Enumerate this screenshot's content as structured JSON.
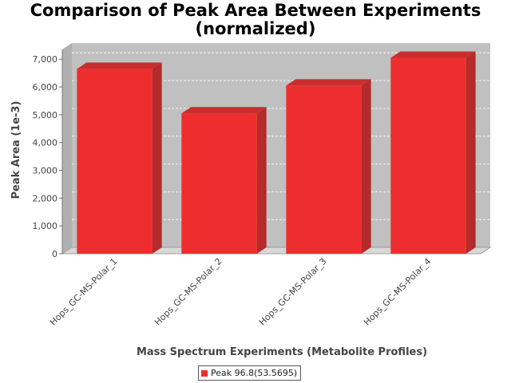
{
  "chart_data": {
    "type": "bar",
    "title_line1": "Comparison of Peak Area Between Experiments",
    "title_line2": "(normalized)",
    "xlabel": "Mass Spectrum Experiments (Metabolite Profiles)",
    "ylabel": "Peak Area (1e-3)",
    "categories": [
      "Hops_GC-MS-Polar_1",
      "Hops_GC-MS-Polar_2",
      "Hops_GC-MS-Polar_3",
      "Hops_GC-MS-Polar_4"
    ],
    "series": [
      {
        "name": "Peak 96.8(53.5695)",
        "values": [
          6650,
          5050,
          6050,
          7050
        ]
      }
    ],
    "ylim": [
      0,
      7350
    ],
    "yticks": [
      0,
      1000,
      2000,
      3000,
      4000,
      5000,
      6000,
      7000
    ],
    "ytick_labels": [
      "0",
      "1,000",
      "2,000",
      "3,000",
      "4,000",
      "5,000",
      "6,000",
      "7,000"
    ],
    "grid": true,
    "legend_position": "bottom-center",
    "colors": {
      "bar_front": "#ee2e2e",
      "bar_side": "#b52a2a",
      "bar_top": "#c82e2e",
      "plot_back": "#c0c0c0",
      "plot_floor": "#d8d8d8"
    }
  }
}
